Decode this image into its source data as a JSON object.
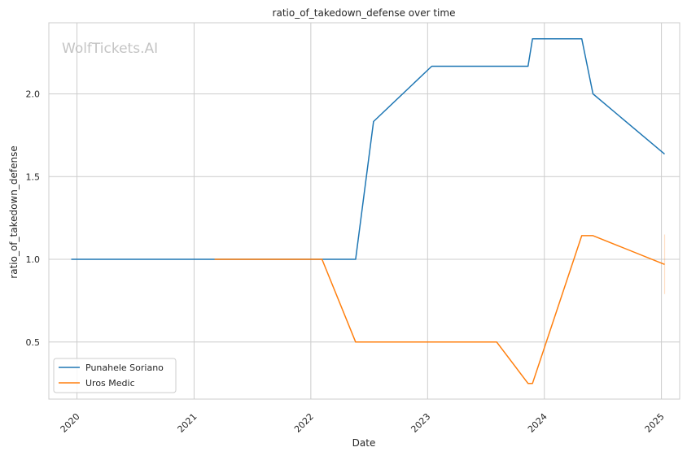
{
  "chart_data": {
    "type": "line",
    "title": "ratio_of_takedown_defense over time",
    "xlabel": "Date",
    "ylabel": "ratio_of_takedown_defense",
    "watermark": "WolfTickets.AI",
    "xlim": [
      "2019-10-05",
      "2025-02-27"
    ],
    "ylim": [
      0.155,
      2.43
    ],
    "x_ticks": [
      "2020-01-01",
      "2021-01-01",
      "2022-01-01",
      "2023-01-01",
      "2024-01-01",
      "2025-01-01"
    ],
    "x_tick_labels": [
      "2020",
      "2021",
      "2022",
      "2023",
      "2024",
      "2025"
    ],
    "y_ticks": [
      0.5,
      1.0,
      1.5,
      2.0
    ],
    "y_tick_labels": [
      "0.5",
      "1.0",
      "1.5",
      "2.0"
    ],
    "grid": true,
    "legend_position": "lower-left",
    "series": [
      {
        "name": "Punahele Soriano",
        "color": "#1f77b4",
        "x": [
          "2019-12-14",
          "2022-05-21",
          "2022-07-16",
          "2023-01-14",
          "2023-11-11",
          "2023-11-25",
          "2024-04-27",
          "2024-06-01",
          "2025-01-11"
        ],
        "y": [
          1.0,
          1.0,
          1.833,
          2.167,
          2.167,
          2.333,
          2.333,
          2.0,
          1.636
        ]
      },
      {
        "name": "Uros Medic",
        "color": "#ff7f0e",
        "x": [
          "2021-03-06",
          "2022-02-05",
          "2022-05-21",
          "2023-08-05",
          "2023-11-11",
          "2023-11-25",
          "2024-04-27",
          "2024-06-01",
          "2025-01-11"
        ],
        "y": [
          1.0,
          1.0,
          0.5,
          0.5,
          0.25,
          0.25,
          1.143,
          1.143,
          0.969
        ]
      }
    ],
    "error_band": {
      "x": "2025-01-11",
      "y_low": 0.79,
      "y_high": 1.15,
      "color": "#ff7f0e"
    }
  }
}
